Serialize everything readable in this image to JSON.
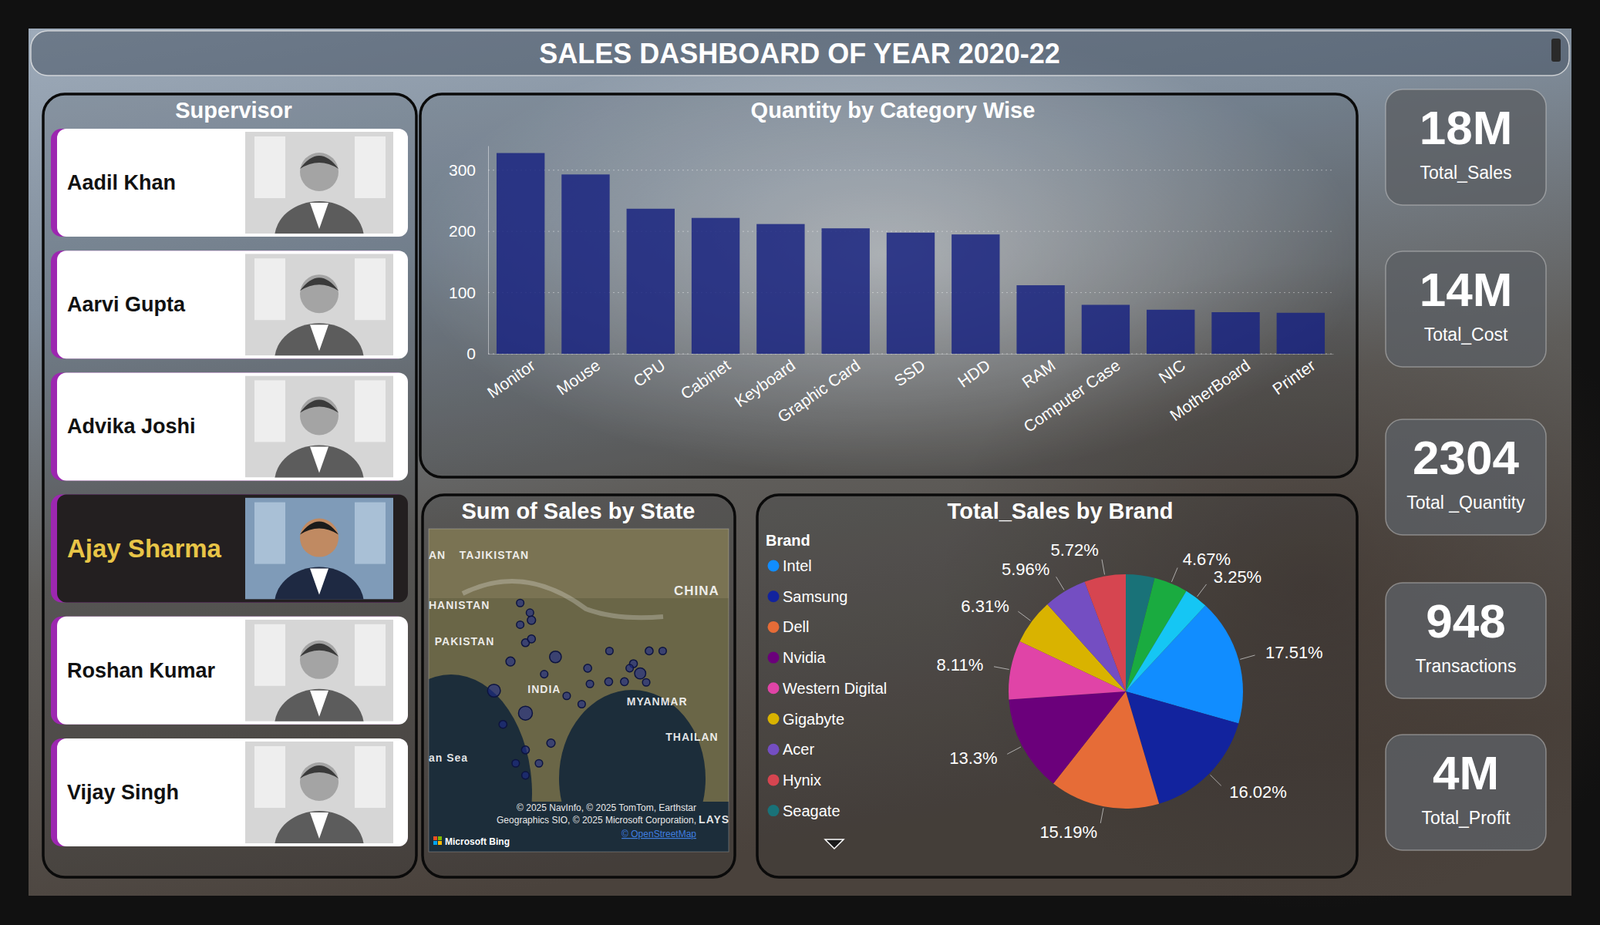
{
  "title": "SALES DASHBOARD OF YEAR 2020-22",
  "supervisor": {
    "title": "Supervisor",
    "people": [
      {
        "name": "Aadil Khan",
        "selected": false
      },
      {
        "name": "Aarvi Gupta",
        "selected": false
      },
      {
        "name": "Advika Joshi",
        "selected": false
      },
      {
        "name": "Ajay Sharma",
        "selected": true
      },
      {
        "name": "Roshan Kumar",
        "selected": false
      },
      {
        "name": "Vijay Singh",
        "selected": false
      }
    ]
  },
  "kpis": [
    {
      "value": "18M",
      "label": "Total_Sales"
    },
    {
      "value": "14M",
      "label": "Total_Cost"
    },
    {
      "value": "2304",
      "label": "Total _Quantity"
    },
    {
      "value": "948",
      "label": "Transactions"
    },
    {
      "value": "4M",
      "label": "Total_Profit"
    }
  ],
  "chart_data": [
    {
      "type": "bar",
      "title": "Quantity by Category Wise",
      "categories": [
        "Monitor",
        "Mouse",
        "CPU",
        "Cabinet",
        "Keyboard",
        "Graphic Card",
        "SSD",
        "HDD",
        "RAM",
        "Computer Case",
        "NIC",
        "MotherBoard",
        "Printer"
      ],
      "values": [
        328,
        293,
        237,
        222,
        212,
        205,
        198,
        195,
        112,
        80,
        72,
        68,
        67
      ],
      "color": "#1a2580",
      "ylim": [
        0,
        340
      ],
      "yticks": [
        0,
        100,
        200,
        300
      ],
      "grid": true
    },
    {
      "type": "map",
      "title": "Sum of Sales by State",
      "xlim": [
        63,
        103
      ],
      "ylim": [
        -0.7,
        42.4
      ],
      "tick_labels": false,
      "color": "#1c2a8c",
      "lon": [
        75.2,
        76.5,
        75.2,
        76.7,
        75.9,
        76.7,
        73.9,
        79.9,
        78.4,
        87.1,
        92.4,
        94.2,
        90.3,
        91.2,
        89.1,
        84.2,
        87.0,
        84.5,
        71.7,
        75.9,
        81.4,
        83.4,
        72.9,
        79.3,
        75.9,
        77.7,
        74.6,
        75.9,
        92.0,
        89.8
      ],
      "lat": [
        32.5,
        31.2,
        29.6,
        30.2,
        27.2,
        27.7,
        24.7,
        25.3,
        23.0,
        26.1,
        26.1,
        26.1,
        24.4,
        23.1,
        22.0,
        23.8,
        22.0,
        21.7,
        20.8,
        17.8,
        20.1,
        19.0,
        16.3,
        13.8,
        12.9,
        11.1,
        11.1,
        9.5,
        21.9,
        23.8
      ],
      "sales": [
        400000,
        400000,
        400000,
        500000,
        450000,
        450000,
        600000,
        1000000,
        400000,
        400000,
        450000,
        400000,
        450000,
        900000,
        450000,
        450000,
        450000,
        400000,
        1200000,
        1400000,
        400000,
        400000,
        450000,
        500000,
        450000,
        400000,
        400000,
        400000,
        400000,
        400000
      ],
      "places": [
        {
          "name": "AN",
          "lon": 63.0,
          "lat": 38.9
        },
        {
          "name": "TAJIKISTAN",
          "lon": 67.1,
          "lat": 38.9
        },
        {
          "name": "HANISTAN",
          "lon": 63.0,
          "lat": 32.2
        },
        {
          "name": "PAKISTAN",
          "lon": 63.8,
          "lat": 27.4
        },
        {
          "name": "CHINA",
          "lon": 95.7,
          "lat": 34.1
        },
        {
          "name": "INDIA",
          "lon": 76.2,
          "lat": 21.0
        },
        {
          "name": "MYANMAR",
          "lon": 89.4,
          "lat": 19.4
        },
        {
          "name": "THAILAN",
          "lon": 94.6,
          "lat": 14.6
        },
        {
          "name": "an Sea",
          "lon": 63.0,
          "lat": 11.9
        },
        {
          "name": "LAYS",
          "lon": 99.0,
          "lat": 3.6
        }
      ],
      "attribution": [
        "© 2025 NavInfo, © 2025 TomTom, Earthstar",
        "Geographics SIO, © 2025 Microsoft Corporation,",
        "© OpenStreetMap"
      ],
      "logo": "Microsoft Bing"
    },
    {
      "type": "pie",
      "title": "Total_Sales by Brand",
      "legend_title": "Brand",
      "legend": "left",
      "categories": [
        "Intel",
        "Samsung",
        "Dell",
        "Nvidia",
        "Western Digital",
        "Gigabyte",
        "Acer",
        "Hynix",
        "Seagate",
        null,
        null
      ],
      "values": [
        17.51,
        16.02,
        15.19,
        13.3,
        8.11,
        6.31,
        5.96,
        5.72,
        3.96,
        4.67,
        3.25
      ],
      "value_labels": [
        "17.51%",
        "16.02%",
        "15.19%",
        "13.3%",
        "8.11%",
        "6.31%",
        "5.96%",
        "5.72%",
        null,
        "4.67%",
        "3.25%"
      ],
      "colors": [
        "#118DFF",
        "#12239E",
        "#E66C37",
        "#6B007B",
        "#E044A7",
        "#D9B300",
        "#744EC2",
        "#D64550",
        "#197278",
        "#1AAB40",
        "#15C6F4"
      ],
      "data_labels": true
    }
  ]
}
